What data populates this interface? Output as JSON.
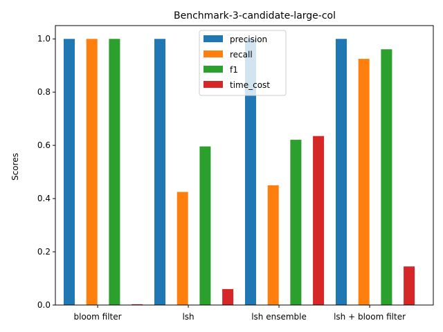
{
  "chart_data": {
    "type": "bar",
    "title": "Benchmark-3-candidate-large-col",
    "xlabel": "",
    "ylabel": "Scores",
    "ylim": [
      0,
      1.05
    ],
    "yticks": [
      "0.0",
      "0.2",
      "0.4",
      "0.6",
      "0.8",
      "1.0"
    ],
    "categories": [
      "bloom filter",
      "lsh",
      "lsh ensemble",
      "lsh + bloom filter"
    ],
    "series": [
      {
        "name": "precision",
        "color": "#1f77b4",
        "values": [
          1.0,
          1.0,
          1.0,
          1.0
        ]
      },
      {
        "name": "recall",
        "color": "#ff7f0e",
        "values": [
          1.0,
          0.425,
          0.45,
          0.925
        ]
      },
      {
        "name": "f1",
        "color": "#2ca02c",
        "values": [
          1.0,
          0.596,
          0.621,
          0.961
        ]
      },
      {
        "name": "time_cost",
        "color": "#d62728",
        "values": [
          0.003,
          0.06,
          0.635,
          0.145
        ]
      }
    ],
    "legend_position": "top-center",
    "grid": false
  }
}
